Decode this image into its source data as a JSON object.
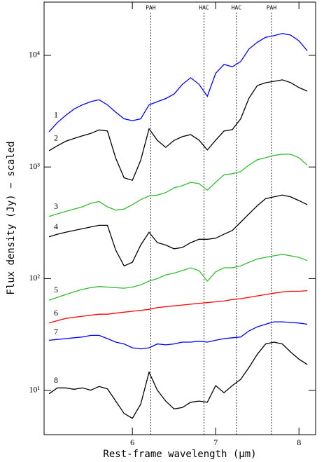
{
  "chart_data": {
    "type": "line",
    "xlabel": "Rest-frame wavelength (μm)",
    "ylabel": "Flux density (Jy) − scaled",
    "log_y": true,
    "xlim": [
      4.94,
      8.2
    ],
    "ylim": [
      4,
      30000
    ],
    "xticks": [
      6,
      7,
      8
    ],
    "yticks": [
      {
        "value": 10,
        "label": "10¹"
      },
      {
        "value": 100,
        "label": "10²"
      },
      {
        "value": 1000,
        "label": "10³"
      },
      {
        "value": 10000,
        "label": "10⁴"
      }
    ],
    "annotations": [
      {
        "x": 6.22,
        "label": "PAH"
      },
      {
        "x": 6.86,
        "label": "HAC"
      },
      {
        "x": 7.25,
        "label": "HAC"
      },
      {
        "x": 7.67,
        "label": "PAH"
      }
    ],
    "x": [
      5.0,
      5.1,
      5.2,
      5.3,
      5.4,
      5.5,
      5.6,
      5.7,
      5.8,
      5.9,
      6.0,
      6.1,
      6.2,
      6.3,
      6.4,
      6.5,
      6.6,
      6.7,
      6.8,
      6.9,
      7.0,
      7.1,
      7.2,
      7.3,
      7.4,
      7.5,
      7.6,
      7.7,
      7.8,
      7.9,
      8.0,
      8.1
    ],
    "series": [
      {
        "name": "1",
        "color": "#0000ff",
        "values": [
          2070,
          2500,
          2900,
          3300,
          3600,
          3850,
          4000,
          3600,
          3100,
          2700,
          2600,
          2700,
          3600,
          3850,
          4100,
          4500,
          5500,
          6300,
          5500,
          4300,
          6900,
          8300,
          7900,
          8800,
          11400,
          13100,
          14500,
          15000,
          15700,
          15200,
          13500,
          11000
        ]
      },
      {
        "name": "2",
        "color": "#000000",
        "values": [
          1400,
          1550,
          1700,
          1800,
          1900,
          2000,
          2150,
          2100,
          1200,
          800,
          760,
          1150,
          2200,
          1730,
          1500,
          1730,
          1870,
          1950,
          1740,
          1420,
          1740,
          2100,
          2160,
          2700,
          4140,
          5370,
          5690,
          5850,
          6030,
          5700,
          5150,
          4780
        ]
      },
      {
        "name": "3",
        "color": "#33bb33",
        "values": [
          360,
          380,
          400,
          420,
          440,
          473,
          490,
          440,
          410,
          420,
          460,
          510,
          550,
          560,
          590,
          650,
          680,
          730,
          710,
          620,
          730,
          850,
          870,
          910,
          1040,
          1160,
          1210,
          1270,
          1300,
          1300,
          1210,
          1040
        ]
      },
      {
        "name": "4",
        "color": "#000000",
        "values": [
          237,
          250,
          260,
          270,
          280,
          290,
          300,
          300,
          180,
          130,
          140,
          200,
          260,
          210,
          200,
          185,
          190,
          210,
          225,
          225,
          230,
          250,
          270,
          320,
          380,
          450,
          520,
          540,
          560,
          540,
          500,
          460
        ]
      },
      {
        "name": "5",
        "color": "#33bb33",
        "values": [
          64,
          68,
          72,
          76,
          80,
          83,
          85,
          84,
          83,
          82,
          84,
          88,
          95,
          100,
          108,
          112,
          118,
          125,
          118,
          95,
          115,
          125,
          125,
          130,
          140,
          150,
          155,
          160,
          165,
          160,
          155,
          145
        ]
      },
      {
        "name": "6",
        "color": "#ff0000",
        "values": [
          40,
          42,
          44,
          45,
          46,
          47,
          48,
          48,
          49,
          50,
          51,
          52,
          53,
          55,
          56,
          57,
          58,
          59,
          60,
          61,
          62,
          63,
          65,
          66,
          68,
          70,
          72,
          74,
          76,
          77,
          77,
          78
        ]
      },
      {
        "name": "7",
        "color": "#0000ff",
        "values": [
          28,
          28.5,
          29,
          29.5,
          30,
          31,
          31,
          29,
          27,
          26,
          24,
          23.5,
          24,
          26,
          25.5,
          26,
          27,
          27,
          27.5,
          27,
          28,
          29,
          29.5,
          30,
          34,
          37,
          39,
          41,
          41,
          40.5,
          40,
          39
        ]
      },
      {
        "name": "8",
        "color": "#000000",
        "values": [
          9.3,
          10.5,
          10.5,
          10.2,
          10.5,
          10,
          10.8,
          10.3,
          8,
          6.2,
          5.6,
          7.5,
          14.5,
          10,
          8,
          6.8,
          7,
          7.8,
          8,
          7.8,
          11,
          9.5,
          11,
          12.5,
          16,
          21,
          26,
          27,
          26,
          22,
          19,
          17
        ]
      }
    ]
  }
}
